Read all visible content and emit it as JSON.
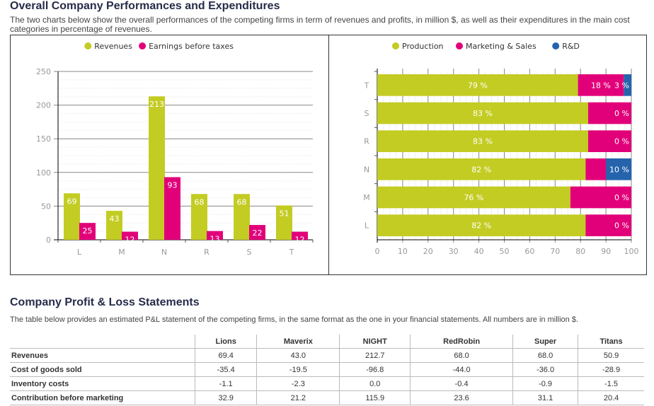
{
  "section1": {
    "title": "Overall Company Performances and Expenditures",
    "description": "The two charts below show the overall performances of the competing firms in term of revenues and profits, in million $, as well as their expenditures in the main cost categories in percentage of revenues."
  },
  "chart_data": [
    {
      "type": "bar",
      "categories": [
        "L",
        "M",
        "N",
        "R",
        "S",
        "T"
      ],
      "series": [
        {
          "name": "Revenues",
          "color": "#c3cc22",
          "values": [
            69,
            43,
            213,
            68,
            68,
            51
          ]
        },
        {
          "name": "Earnings before taxes",
          "color": "#e2007a",
          "values": [
            25,
            12,
            93,
            13,
            22,
            12
          ]
        }
      ],
      "ylim": [
        0,
        250
      ],
      "yticks": [
        0,
        50,
        100,
        150,
        200,
        250
      ],
      "grid": true,
      "legend": "top"
    },
    {
      "type": "bar",
      "orientation": "horizontal",
      "stacked": true,
      "categories": [
        "T",
        "S",
        "R",
        "N",
        "M",
        "L"
      ],
      "series": [
        {
          "name": "Production",
          "color": "#c3cc22",
          "values": [
            79,
            83,
            83,
            82,
            76,
            82
          ]
        },
        {
          "name": "Marketing & Sales",
          "color": "#e2007a",
          "values": [
            18,
            17,
            17,
            8,
            24,
            18
          ]
        },
        {
          "name": "R&D",
          "color": "#2563ad",
          "values": [
            3,
            0,
            0,
            10,
            0,
            0
          ]
        }
      ],
      "xlim": [
        0,
        100
      ],
      "xticks": [
        0,
        10,
        20,
        30,
        40,
        50,
        60,
        70,
        80,
        90,
        100
      ],
      "grid": true,
      "legend": "top",
      "unit": " %"
    }
  ],
  "section2": {
    "title": "Company Profit & Loss Statements",
    "description": "The table below provides an estimated P&L statement of the competing firms, in the same format as the one in your financial statements. All numbers are in million $."
  },
  "table": {
    "headers": [
      "",
      "Lions",
      "Maverix",
      "NIGHT",
      "RedRobin",
      "Super",
      "Titans"
    ],
    "rows": [
      [
        "Revenues",
        "69.4",
        "43.0",
        "212.7",
        "68.0",
        "68.0",
        "50.9"
      ],
      [
        "Cost of goods sold",
        "-35.4",
        "-19.5",
        "-96.8",
        "-44.0",
        "-36.0",
        "-28.9"
      ],
      [
        "Inventory costs",
        "-1.1",
        "-2.3",
        "0.0",
        "-0.4",
        "-0.9",
        "-1.5"
      ],
      [
        "Contribution before marketing",
        "32.9",
        "21.2",
        "115.9",
        "23.6",
        "31.1",
        "20.4"
      ]
    ]
  }
}
